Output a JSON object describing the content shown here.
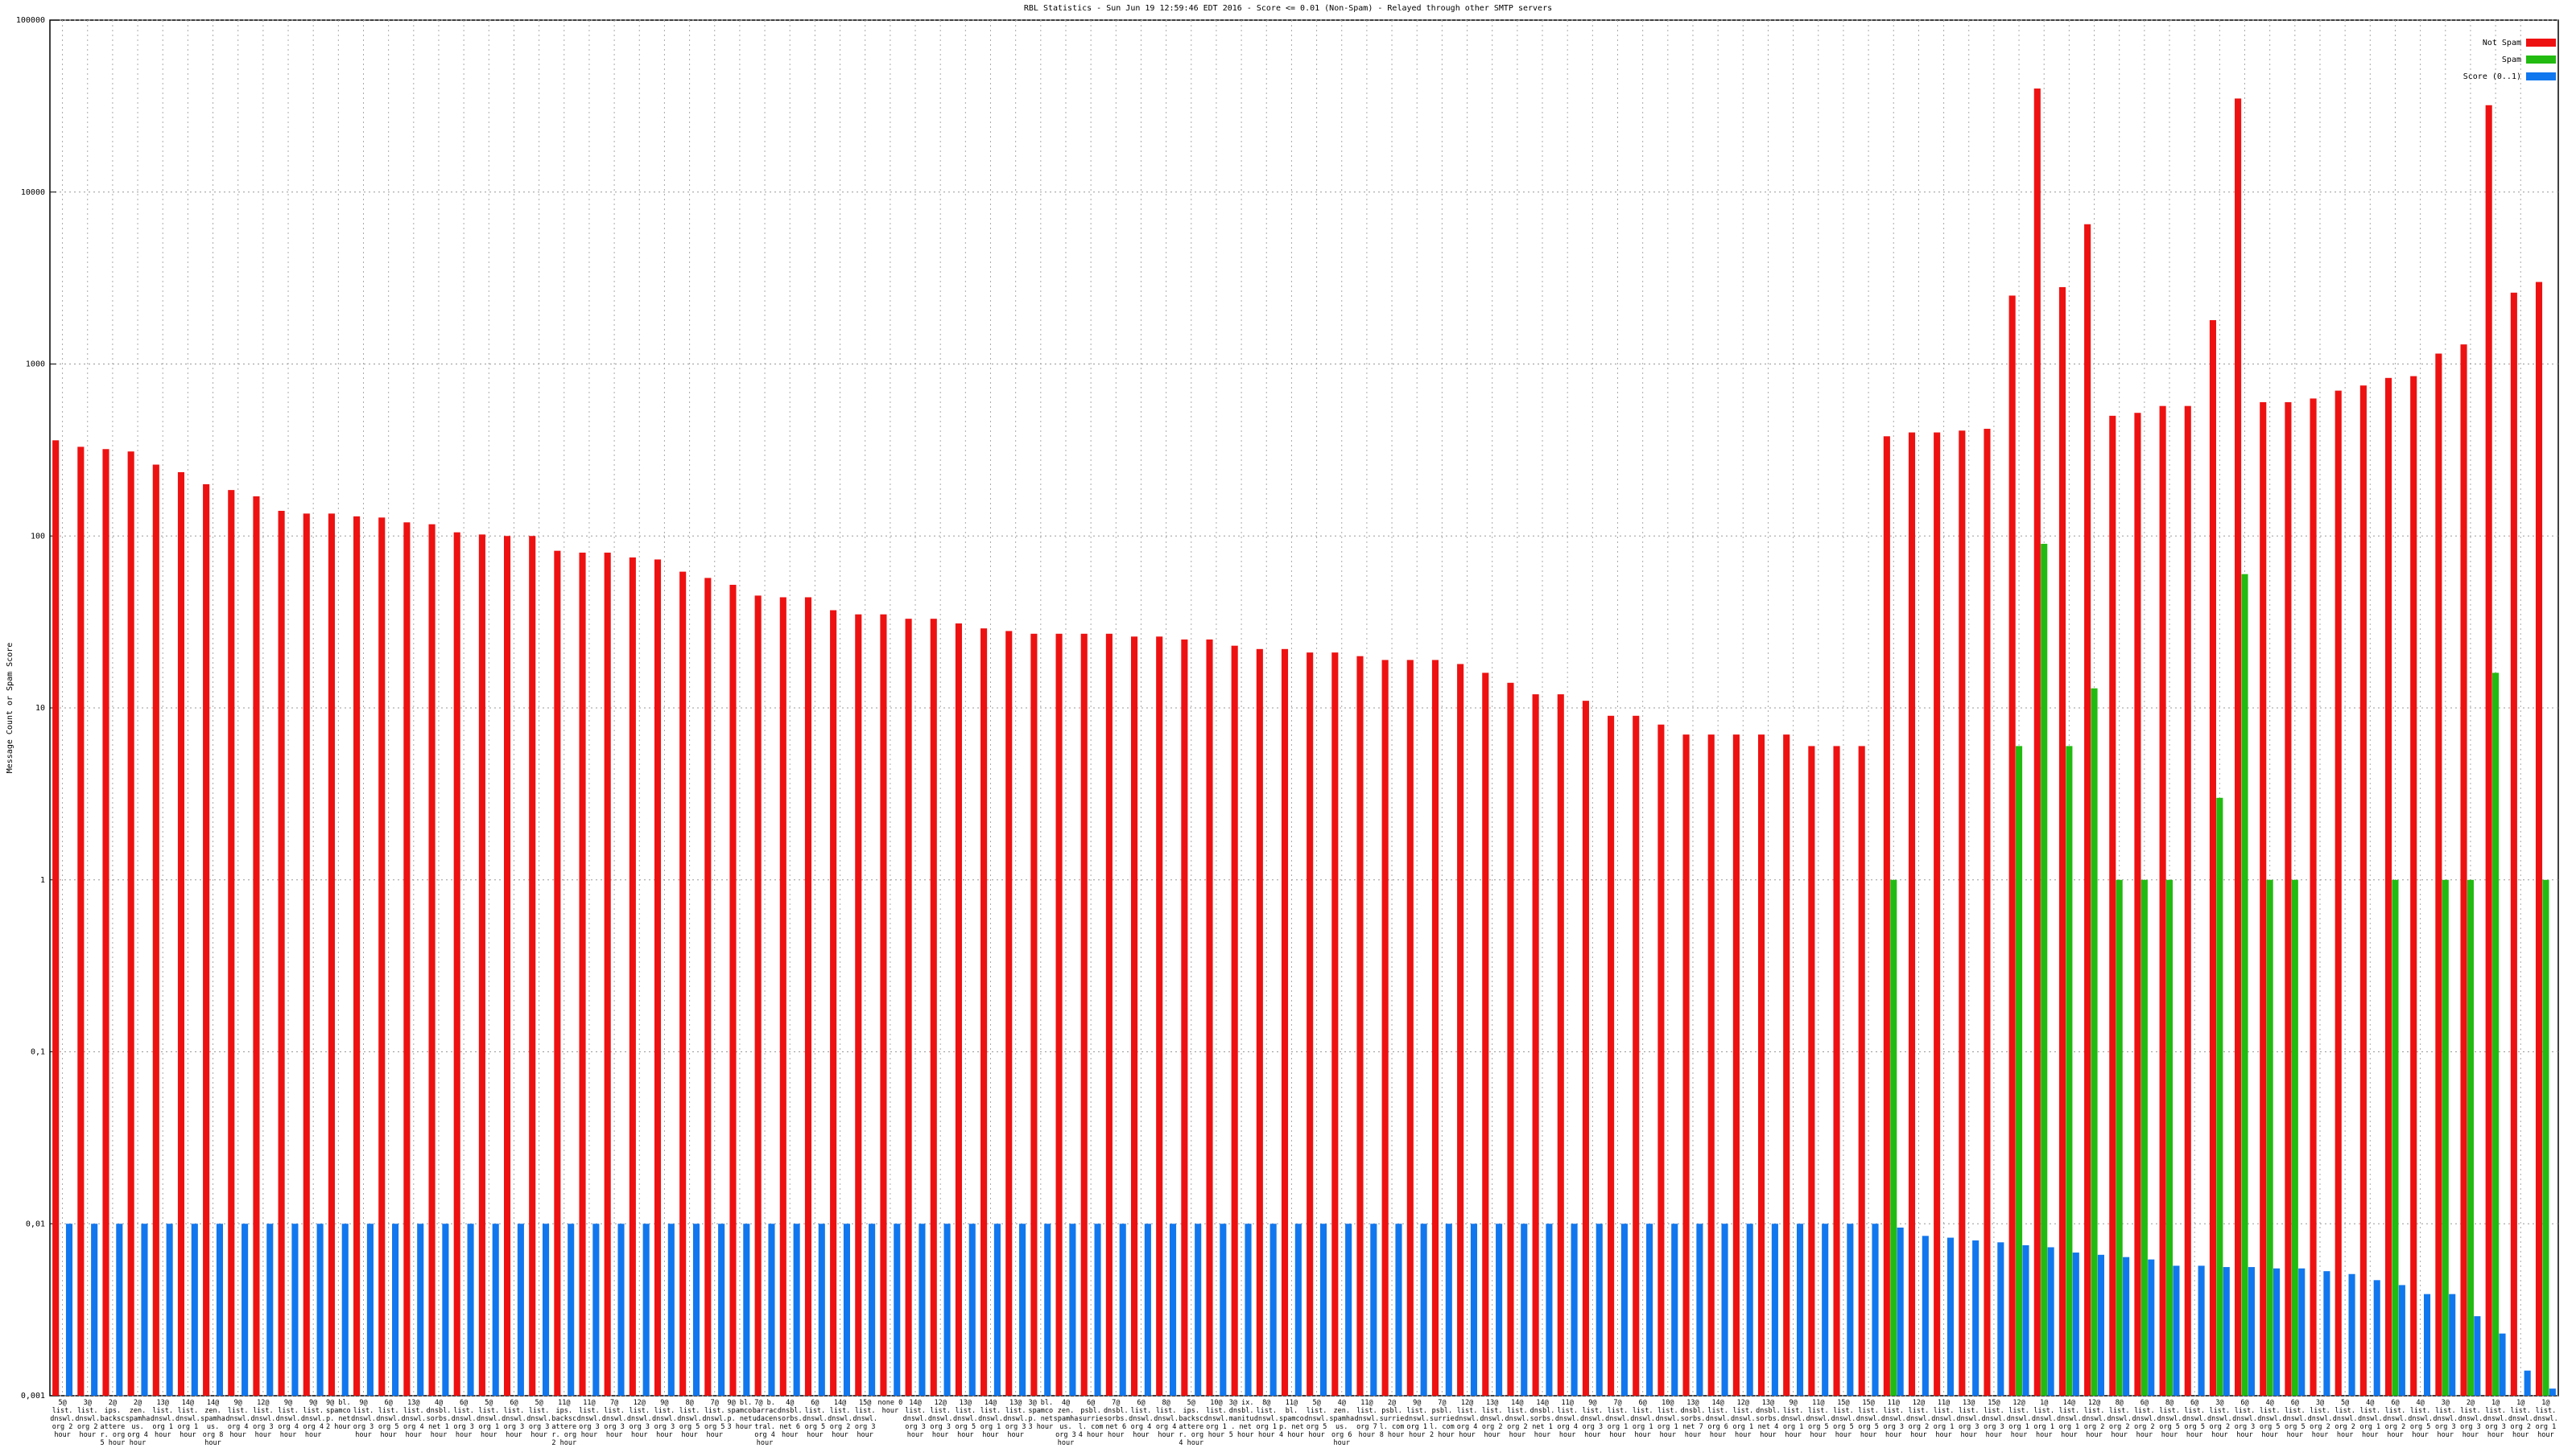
{
  "chart_data": {
    "type": "bar",
    "log_scale": true,
    "grid": true,
    "legend": "top-right",
    "title": "RBL Statistics - Sun Jun 19 12:59:46 EDT 2016 - Score <= 0.01 (Non-Spam) - Relayed through other SMTP servers",
    "ylabel": "Message Count or Spam Score",
    "ylim": [
      0.001,
      100000
    ],
    "yticks": [
      {
        "value": 0.001,
        "label": "0,001"
      },
      {
        "value": 0.01,
        "label": "0,01"
      },
      {
        "value": 0.1,
        "label": "0,1"
      },
      1,
      10,
      100,
      1000,
      10000,
      100000
    ],
    "categories": [
      "5@ list. dnswl. org 2 hour",
      "3@ list. dnswl. org 2 hour",
      "2@ ips. backscatterer. org 5 hour",
      "2@ zen. spamhaus. org 4 hour",
      "13@ list. dnswl. org 1 hour",
      "14@ list. dnswl. org 1 hour",
      "14@ zen. spamhaus. org 8 hour",
      "9@ list. dnswl. org 4 hour",
      "12@ list. dnswl. org 3 hour",
      "9@ list. dnswl. org 4 hour",
      "9@ list. dnswl. org 4 hour",
      "9@ bl. spamcop. net 2 hour",
      "9@ list. dnswl. org 3 hour",
      "6@ list. dnswl. org 5 hour",
      "13@ list. dnswl. org 4 hour",
      "4@ dnsbl. sorbs. net 1 hour",
      "6@ list. dnswl. org 3 hour",
      "5@ list. dnswl. org 1 hour",
      "6@ list. dnswl. org 3 hour",
      "5@ list. dnswl. org 3 hour",
      "11@ ips. backscatterer. org 2 hour",
      "11@ list. dnswl. org 3 hour",
      "7@ list. dnswl. org 3 hour",
      "12@ list. dnswl. org 3 hour",
      "9@ list. dnswl. org 3 hour",
      "8@ list. dnswl. org 5 hour",
      "7@ list. dnswl. org 5 hour",
      "9@ bl. spamcop. net 3 hour",
      "7@ b. barracudacentral. org 4 hour",
      "4@ dnsbl. sorbs. net 6 hour",
      "6@ list. dnswl. org 5 hour",
      "14@ list. dnswl. org 2 hour",
      "15@ list. dnswl. org 3 hour",
      "none 0 hour",
      "14@ list. dnswl. org 3 hour",
      "12@ list. dnswl. org 3 hour",
      "13@ list. dnswl. org 5 hour",
      "14@ list. dnswl. org 1 hour",
      "13@ list. dnswl. org 3 hour",
      "3@ bl. spamcop. net 3 hour",
      "4@ zen. spamhaus. org 3 hour",
      "6@ psbl. surriel. com 4 hour",
      "7@ dnsbl. sorbs. net 6 hour",
      "6@ list. dnswl. org 4 hour",
      "8@ list. dnswl. org 4 hour",
      "5@ ips. backscatterer. org 4 hour",
      "10@ list. dnswl. org 1 hour",
      "3@ ix. dnsbl. manitu. net 5 hour",
      "8@ list. dnswl. org 1 hour",
      "11@ bl. spamcop. net 4 hour",
      "5@ list. dnswl. org 5 hour",
      "4@ zen. spamhaus. org 6 hour",
      "11@ list. dnswl. org 7 hour",
      "2@ psbl. surriel. com 8 hour",
      "9@ list. dnswl. org 1 hour",
      "7@ psbl. surriel. com 2 hour",
      "12@ list. dnswl. org 4 hour",
      "13@ list. dnswl. org 2 hour",
      "14@ list. dnswl. org 2 hour",
      "14@ dnsbl. sorbs. net 1 hour",
      "11@ list. dnswl. org 4 hour",
      "9@ list. dnswl. org 3 hour",
      "7@ list. dnswl. org 1 hour",
      "6@ list. dnswl. org 1 hour",
      "10@ list. dnswl. org 1 hour",
      "13@ dnsbl. sorbs. net 7 hour",
      "14@ list. dnswl. org 6 hour",
      "12@ list. dnswl. org 1 hour",
      "13@ dnsbl. sorbs. net 4 hour",
      "9@ list. dnswl. org 1 hour",
      "11@ list. dnswl. org 5 hour",
      "15@ list. dnswl. org 5 hour",
      "15@ list. dnswl. org 5 hour",
      "11@ list. dnswl. org 3 hour",
      "12@ list. dnswl. org 2 hour",
      "11@ list. dnswl. org 1 hour",
      "13@ list. dnswl. org 3 hour",
      "15@ list. dnswl. org 3 hour",
      "12@ list. dnswl. org 1 hour",
      "1@ list. dnswl. org 1 hour",
      "14@ list. dnswl. org 1 hour",
      "12@ list. dnswl. org 2 hour",
      "8@ list. dnswl. org 2 hour",
      "6@ list. dnswl. org 2 hour",
      "8@ list. dnswl. org 5 hour",
      "6@ list. dnswl. org 5 hour",
      "3@ list. dnswl. org 2 hour",
      "6@ list. dnswl. org 3 hour",
      "4@ list. dnswl. org 5 hour",
      "6@ list. dnswl. org 5 hour",
      "3@ list. dnswl. org 2 hour",
      "5@ list. dnswl. org 2 hour",
      "4@ list. dnswl. org 1 hour",
      "6@ list. dnswl. org 2 hour",
      "4@ list. dnswl. org 5 hour",
      "3@ list. dnswl. org 3 hour",
      "2@ list. dnswl. org 3 hour",
      "1@ list. dnswl. org 3 hour",
      "1@ list. dnswl. org 2 hour",
      "1@ list. dnswl. org 1 hour"
    ],
    "series": [
      {
        "name": "Not Spam",
        "color": "#ee1111",
        "values": [
          360,
          330,
          320,
          310,
          260,
          235,
          200,
          185,
          170,
          140,
          135,
          135,
          130,
          128,
          120,
          117,
          105,
          102,
          100,
          100,
          82,
          80,
          80,
          75,
          73,
          62,
          57,
          52,
          45,
          44,
          44,
          37,
          35,
          35,
          33,
          33,
          31,
          29,
          28,
          27,
          27,
          27,
          27,
          26,
          26,
          25,
          25,
          23,
          22,
          22,
          21,
          21,
          20,
          19,
          19,
          19,
          18,
          16,
          14,
          12,
          12,
          11,
          9,
          9,
          8,
          7,
          7,
          7,
          7,
          7,
          6,
          6,
          6,
          380,
          400,
          400,
          410,
          420,
          2500,
          40000,
          2800,
          6500,
          500,
          520,
          570,
          570,
          1800,
          35000,
          600,
          600,
          630,
          700,
          750,
          830,
          850,
          1150,
          1300,
          32000,
          2600,
          3000
        ]
      },
      {
        "name": "Spam",
        "color": "#22bb11",
        "values": [
          null,
          null,
          null,
          null,
          null,
          null,
          null,
          null,
          null,
          null,
          null,
          null,
          null,
          null,
          null,
          null,
          null,
          null,
          null,
          null,
          null,
          null,
          null,
          null,
          null,
          null,
          null,
          null,
          null,
          null,
          null,
          null,
          null,
          null,
          null,
          null,
          null,
          null,
          null,
          null,
          null,
          null,
          null,
          null,
          null,
          null,
          null,
          null,
          null,
          null,
          null,
          null,
          null,
          null,
          null,
          null,
          null,
          null,
          null,
          null,
          null,
          null,
          null,
          null,
          null,
          null,
          null,
          null,
          null,
          null,
          null,
          null,
          null,
          1,
          null,
          null,
          null,
          null,
          6,
          90,
          6,
          13,
          1,
          1,
          1,
          null,
          3,
          60,
          1,
          1,
          null,
          null,
          null,
          1,
          null,
          1,
          1,
          16,
          null,
          1
        ]
      },
      {
        "name": "Score (0..1)",
        "color": "#1177ee",
        "values": [
          0.01,
          0.01,
          0.01,
          0.01,
          0.01,
          0.01,
          0.01,
          0.01,
          0.01,
          0.01,
          0.01,
          0.01,
          0.01,
          0.01,
          0.01,
          0.01,
          0.01,
          0.01,
          0.01,
          0.01,
          0.01,
          0.01,
          0.01,
          0.01,
          0.01,
          0.01,
          0.01,
          0.01,
          0.01,
          0.01,
          0.01,
          0.01,
          0.01,
          0.01,
          0.01,
          0.01,
          0.01,
          0.01,
          0.01,
          0.01,
          0.01,
          0.01,
          0.01,
          0.01,
          0.01,
          0.01,
          0.01,
          0.01,
          0.01,
          0.01,
          0.01,
          0.01,
          0.01,
          0.01,
          0.01,
          0.01,
          0.01,
          0.01,
          0.01,
          0.01,
          0.01,
          0.01,
          0.01,
          0.01,
          0.01,
          0.01,
          0.01,
          0.01,
          0.01,
          0.01,
          0.01,
          0.01,
          0.01,
          0.0095,
          0.0085,
          0.0083,
          0.008,
          0.0078,
          0.0075,
          0.0073,
          0.0068,
          0.0066,
          0.0064,
          0.0062,
          0.0057,
          0.0057,
          0.0056,
          0.0056,
          0.0055,
          0.0055,
          0.0053,
          0.0051,
          0.0047,
          0.0044,
          0.0039,
          0.0039,
          0.0029,
          0.0023,
          0.0014,
          0.0011
        ]
      }
    ]
  }
}
